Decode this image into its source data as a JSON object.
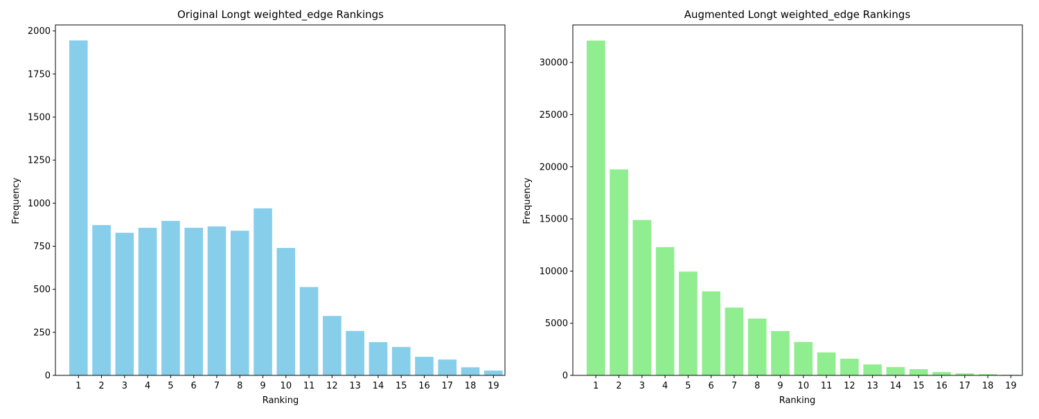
{
  "chart_data": [
    {
      "type": "bar",
      "title": "Original Longt weighted_edge Rankings",
      "xlabel": "Ranking",
      "ylabel": "Frequency",
      "categories": [
        "1",
        "2",
        "3",
        "4",
        "5",
        "6",
        "7",
        "8",
        "9",
        "10",
        "11",
        "12",
        "13",
        "14",
        "15",
        "16",
        "17",
        "18",
        "19"
      ],
      "values": [
        1945,
        873,
        828,
        857,
        897,
        857,
        865,
        840,
        970,
        740,
        513,
        345,
        258,
        193,
        165,
        108,
        92,
        47,
        28
      ],
      "ylim": [
        0,
        2035
      ],
      "yticks": [
        0,
        250,
        500,
        750,
        1000,
        1250,
        1500,
        1750,
        2000
      ],
      "xlim": [
        0,
        19.5
      ],
      "color": "#87ceeb"
    },
    {
      "type": "bar",
      "title": "Augmented Longt weighted_edge Rankings",
      "xlabel": "Ranking",
      "ylabel": "Frequency",
      "categories": [
        "1",
        "2",
        "3",
        "4",
        "5",
        "6",
        "7",
        "8",
        "9",
        "10",
        "11",
        "12",
        "13",
        "14",
        "15",
        "16",
        "17",
        "18",
        "19"
      ],
      "values": [
        32100,
        19750,
        14900,
        12300,
        9950,
        8050,
        6500,
        5450,
        4250,
        3200,
        2200,
        1600,
        1050,
        800,
        600,
        320,
        190,
        120,
        60
      ],
      "ylim": [
        0,
        33600
      ],
      "yticks": [
        0,
        5000,
        10000,
        15000,
        20000,
        25000,
        30000
      ],
      "xlim": [
        0,
        19.5
      ],
      "color": "#90ee90"
    }
  ]
}
